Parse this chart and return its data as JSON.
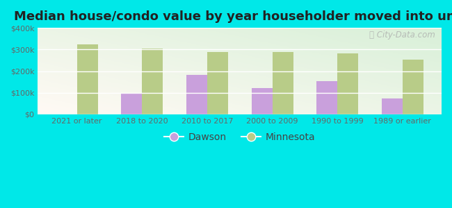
{
  "title": "Median house/condo value by year householder moved into unit",
  "categories": [
    "2021 or later",
    "2018 to 2020",
    "2010 to 2017",
    "2000 to 2009",
    "1990 to 1999",
    "1989 or earlier"
  ],
  "dawson_values": [
    null,
    95000,
    182000,
    122000,
    152000,
    72000
  ],
  "minnesota_values": [
    325000,
    305000,
    288000,
    287000,
    283000,
    253000
  ],
  "dawson_color": "#c9a0dc",
  "minnesota_color": "#b8cc88",
  "background_top_right": "#e8f5f0",
  "background_bottom_left": "#d8f0d8",
  "outer_background": "#00e8e8",
  "ylim": [
    0,
    400000
  ],
  "yticks": [
    0,
    100000,
    200000,
    300000,
    400000
  ],
  "ytick_labels": [
    "$0",
    "$100k",
    "$200k",
    "$300k",
    "$400k"
  ],
  "bar_width": 0.32,
  "watermark": "City-Data.com",
  "legend_dawson": "Dawson",
  "legend_minnesota": "Minnesota",
  "title_fontsize": 13,
  "tick_fontsize": 8,
  "grid_color": "#ffffff"
}
